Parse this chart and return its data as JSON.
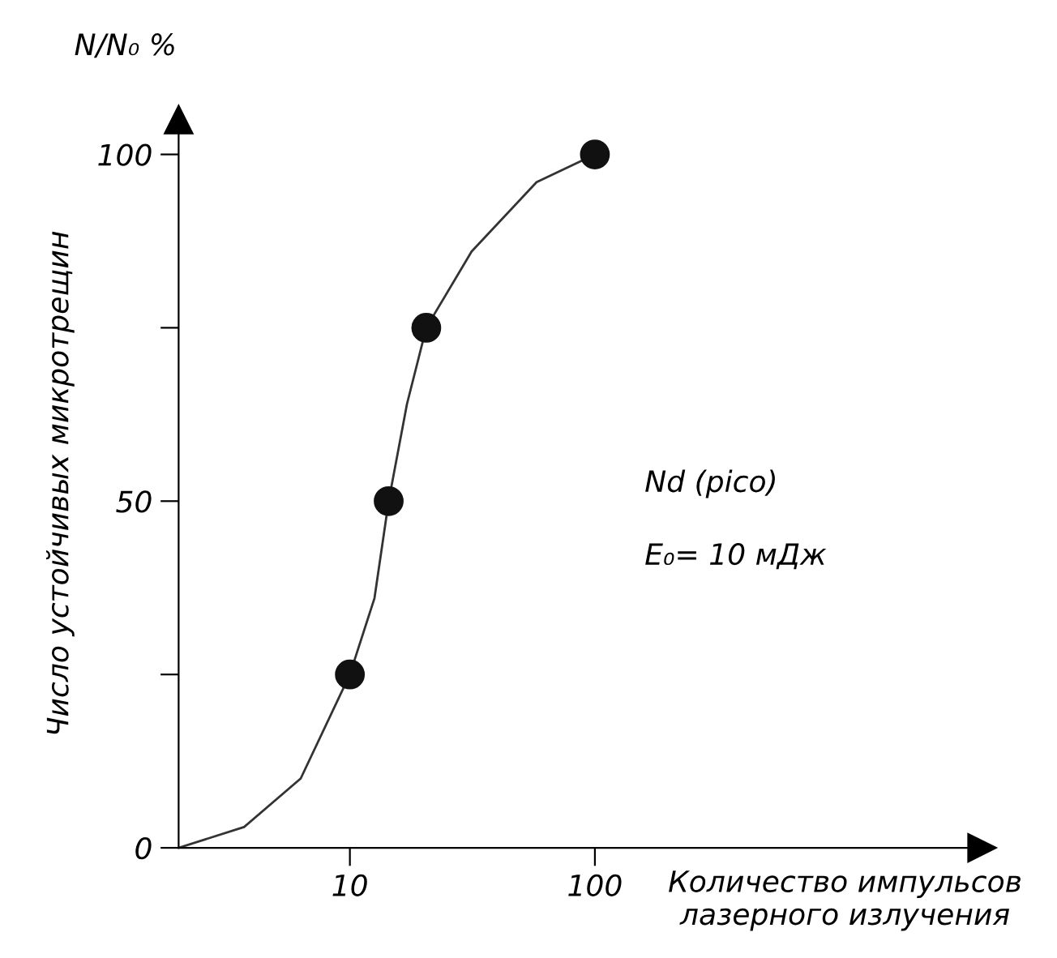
{
  "chart_data": {
    "type": "scatter",
    "ylabel": "Число устойчивых микротрещин",
    "xlabel": "Количество импульсов\nлазерного излучения",
    "annotations": [
      "N/N₀ %",
      "Nd (pico)",
      "E₀= 10 мДж"
    ],
    "log": "x",
    "xlim": [
      2,
      3800
    ],
    "xticks": [
      10,
      100
    ],
    "ylim": [
      0,
      105
    ],
    "yticks": [
      0,
      {
        "value": 25,
        "label": null
      },
      50,
      {
        "value": 75,
        "label": null
      },
      100
    ],
    "grid": false,
    "legend": false,
    "marker": "circle",
    "series": [
      {
        "color": "#111111",
        "x": [
          10,
          14.4,
          20.5,
          100
        ],
        "values": [
          25,
          50,
          75,
          100
        ]
      },
      {
        "type": "line",
        "color": "#333333",
        "line_style": "solid",
        "marker": "none",
        "x": [
          2,
          3.7,
          6.3,
          10,
          12.6,
          14.4,
          17.1,
          20.5,
          31.4,
          57.8,
          100
        ],
        "values": [
          0,
          3,
          10,
          25,
          36,
          50,
          64,
          75,
          86,
          96,
          100
        ]
      }
    ]
  }
}
